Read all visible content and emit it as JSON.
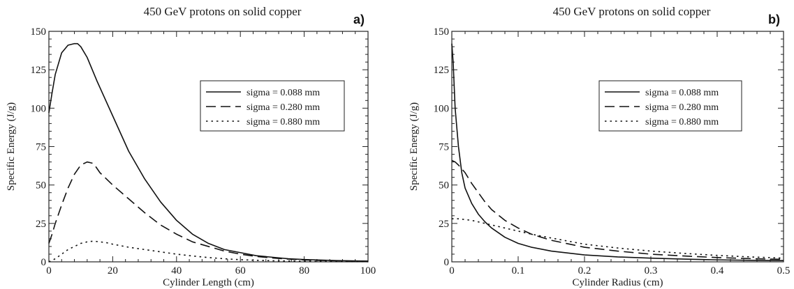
{
  "chart_data": [
    {
      "type": "line",
      "title": "450 GeV protons on solid copper",
      "panel_label": "a)",
      "xlabel": "Cylinder Length (cm)",
      "ylabel": "Specific Energy (J/g)",
      "xlim": [
        0,
        100
      ],
      "ylim": [
        0,
        150
      ],
      "xticks": [
        0,
        20,
        40,
        60,
        80,
        100
      ],
      "xtick_labels": [
        "0",
        "20",
        "40",
        "60",
        "80",
        "100"
      ],
      "yticks": [
        0,
        25,
        50,
        75,
        100,
        125,
        150
      ],
      "ytick_labels": [
        "0",
        "25",
        "50",
        "75",
        "100",
        "125",
        "150"
      ],
      "grid": false,
      "legend_position": "top-right",
      "series": [
        {
          "name": "sigma = 0.088 mm",
          "style": "solid",
          "x": [
            0,
            1,
            2,
            4,
            6,
            8,
            9,
            10,
            12,
            15,
            20,
            25,
            30,
            35,
            40,
            45,
            50,
            55,
            60,
            65,
            70,
            75,
            80,
            90,
            100
          ],
          "y": [
            97,
            110,
            122,
            136,
            141,
            142,
            142,
            140,
            133,
            118,
            95,
            72,
            54,
            39,
            27,
            18,
            12,
            8,
            6,
            4,
            3,
            2,
            1.5,
            0.8,
            0.5
          ]
        },
        {
          "name": "sigma = 0.280 mm",
          "style": "dashed",
          "x": [
            0,
            1,
            2,
            4,
            6,
            8,
            10,
            12,
            14,
            16,
            20,
            25,
            30,
            35,
            40,
            45,
            50,
            55,
            60,
            65,
            70,
            75,
            80,
            90,
            100
          ],
          "y": [
            12,
            18,
            25,
            37,
            48,
            57,
            63,
            65,
            64,
            58,
            50,
            41,
            32,
            24,
            18,
            13,
            10,
            7,
            5,
            3.5,
            2.5,
            1.8,
            1.2,
            0.7,
            0.4
          ]
        },
        {
          "name": "sigma = 0.880 mm",
          "style": "dotted",
          "x": [
            0,
            2,
            4,
            6,
            8,
            10,
            12,
            14,
            16,
            18,
            20,
            25,
            30,
            35,
            40,
            45,
            50,
            55,
            60,
            65,
            70,
            80,
            90,
            100
          ],
          "y": [
            0,
            2,
            5,
            8,
            10,
            12,
            13,
            13.5,
            13,
            12.5,
            11.5,
            9.5,
            8,
            6.5,
            5,
            3.8,
            2.8,
            2,
            1.4,
            1,
            0.7,
            0.4,
            0.2,
            0.1
          ]
        }
      ]
    },
    {
      "type": "line",
      "title": "450 GeV protons on solid copper",
      "panel_label": "b)",
      "xlabel": "Cylinder Radius (cm)",
      "ylabel": "Specific Energy (J/g)",
      "xlim": [
        0,
        0.5
      ],
      "ylim": [
        0,
        150
      ],
      "xticks": [
        0,
        0.1,
        0.2,
        0.3,
        0.4,
        0.5
      ],
      "xtick_labels": [
        "0",
        "0.1",
        "0.2",
        "0.3",
        "0.4",
        "0.5"
      ],
      "yticks": [
        0,
        25,
        50,
        75,
        100,
        125,
        150
      ],
      "ytick_labels": [
        "0",
        "25",
        "50",
        "75",
        "100",
        "125",
        "150"
      ],
      "grid": false,
      "legend_position": "top-right",
      "series": [
        {
          "name": "sigma = 0.088 mm",
          "style": "solid",
          "x": [
            0,
            0.002,
            0.005,
            0.01,
            0.015,
            0.02,
            0.03,
            0.04,
            0.05,
            0.06,
            0.08,
            0.1,
            0.12,
            0.15,
            0.2,
            0.25,
            0.3,
            0.35,
            0.4,
            0.45,
            0.5
          ],
          "y": [
            142,
            130,
            100,
            75,
            58,
            48,
            38,
            31,
            26,
            22,
            16,
            12,
            9.5,
            7,
            4.5,
            3.2,
            2.4,
            1.8,
            1.3,
            1.0,
            0.8
          ]
        },
        {
          "name": "sigma = 0.280 mm",
          "style": "dashed",
          "x": [
            0,
            0.005,
            0.01,
            0.02,
            0.03,
            0.04,
            0.05,
            0.06,
            0.08,
            0.1,
            0.12,
            0.15,
            0.2,
            0.25,
            0.3,
            0.35,
            0.4,
            0.45,
            0.5
          ],
          "y": [
            66,
            65,
            63,
            58,
            51,
            45,
            39,
            34,
            27,
            22,
            18,
            14,
            9.5,
            7,
            5,
            3.8,
            2.8,
            2.1,
            1.6
          ]
        },
        {
          "name": "sigma = 0.880 mm",
          "style": "dotted",
          "x": [
            0,
            0.01,
            0.02,
            0.03,
            0.04,
            0.05,
            0.06,
            0.08,
            0.1,
            0.12,
            0.15,
            0.2,
            0.25,
            0.3,
            0.35,
            0.4,
            0.45,
            0.5
          ],
          "y": [
            28,
            28,
            27.5,
            27,
            26,
            25,
            24,
            22,
            20,
            18,
            15.5,
            11.5,
            9,
            7,
            5.5,
            4.2,
            3.2,
            2.4
          ]
        }
      ]
    }
  ]
}
